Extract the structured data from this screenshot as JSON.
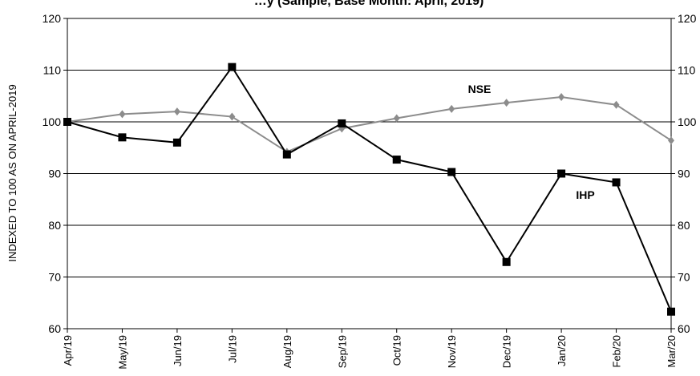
{
  "chart_data": {
    "type": "line",
    "title": "…y (Sample, Base Month: April, 2019)",
    "xlabel": "",
    "ylabel": "INDEXED TO 100 AS ON APRIL-2019",
    "ylim": [
      60,
      120
    ],
    "yticks": [
      60,
      70,
      80,
      90,
      100,
      110,
      120
    ],
    "grid": true,
    "right_axis": true,
    "categories": [
      "Apr/19",
      "May/19",
      "Jun/19",
      "Jul/19",
      "Aug/19",
      "Sep/19",
      "Oct/19",
      "Nov/19",
      "Dec/19",
      "Jan/20",
      "Feb/20",
      "Mar/20"
    ],
    "series": [
      {
        "name": "NSE",
        "color": "#8c8c8c",
        "marker": "diamond",
        "values": [
          100,
          101.5,
          102,
          101,
          94.2,
          98.7,
          100.7,
          102.5,
          103.7,
          104.8,
          103.3,
          96.4
        ]
      },
      {
        "name": "IHP",
        "color": "#000000",
        "marker": "square",
        "values": [
          100,
          97,
          96,
          110.6,
          93.7,
          99.7,
          92.7,
          90.3,
          72.9,
          90,
          88.3,
          63.3
        ]
      }
    ]
  }
}
